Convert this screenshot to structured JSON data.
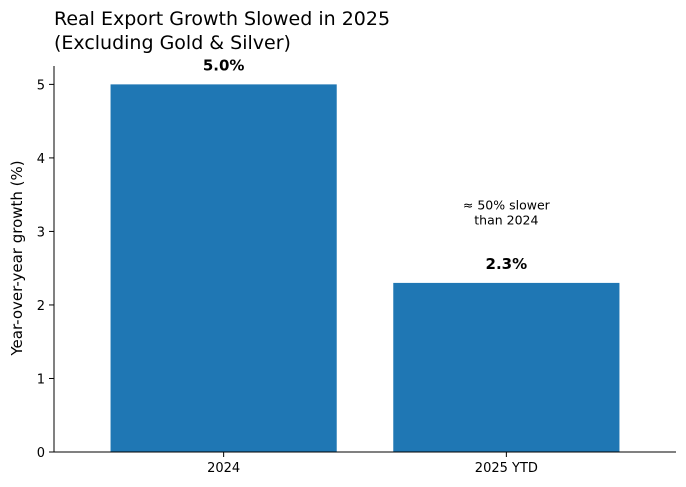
{
  "chart_data": {
    "type": "bar",
    "title_lines": [
      "Real Export Growth Slowed in 2025",
      "(Excluding Gold & Silver)"
    ],
    "xlabel": "",
    "ylabel": "Year-over-year growth (%)",
    "categories": [
      "2024",
      "2025 YTD"
    ],
    "values": [
      5.0,
      2.3
    ],
    "value_labels": [
      "5.0%",
      "2.3%"
    ],
    "ylim": [
      0,
      5.25
    ],
    "yticks": [
      0,
      1,
      2,
      3,
      4,
      5
    ],
    "ytick_labels": [
      "0",
      "1",
      "2",
      "3",
      "4",
      "5"
    ],
    "bar_color": "#1f77b4",
    "grid": false,
    "annotation": {
      "lines": [
        "≈ 50% slower",
        "than 2024"
      ],
      "category": "2025 YTD",
      "y": 3.3
    }
  }
}
